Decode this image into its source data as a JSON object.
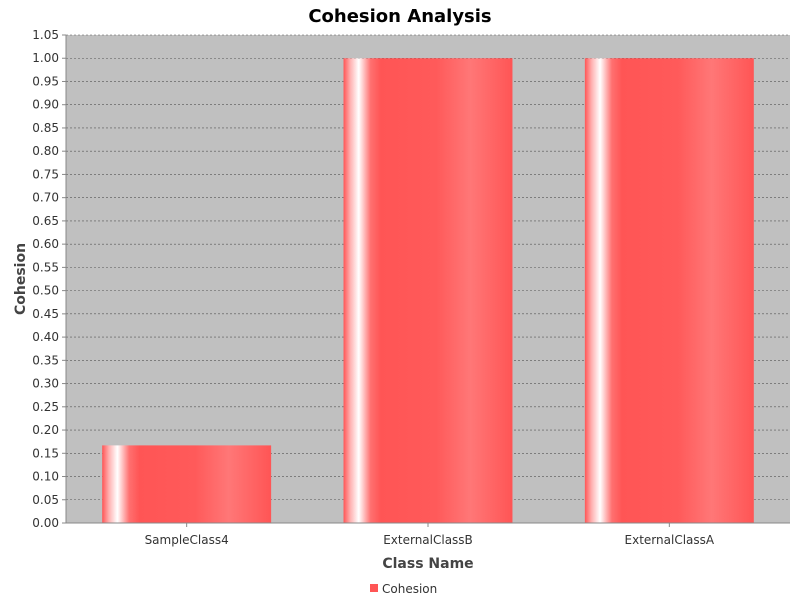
{
  "chart_data": {
    "type": "bar",
    "title": "Cohesion Analysis",
    "xlabel": "Class Name",
    "ylabel": "Cohesion",
    "categories": [
      "SampleClass4",
      "ExternalClassB",
      "ExternalClassA"
    ],
    "series": [
      {
        "name": "Cohesion",
        "values": [
          0.167,
          1.0,
          1.0
        ]
      }
    ],
    "ylim": [
      0,
      1.05
    ],
    "yticks": [
      "0.00",
      "0.05",
      "0.10",
      "0.15",
      "0.20",
      "0.25",
      "0.30",
      "0.35",
      "0.40",
      "0.45",
      "0.50",
      "0.55",
      "0.60",
      "0.65",
      "0.70",
      "0.75",
      "0.80",
      "0.85",
      "0.90",
      "0.95",
      "1.00",
      "1.05"
    ],
    "grid": true,
    "legend": "bottom-center",
    "colors": {
      "bar": "#ff5555",
      "plot_background": "#c0c0c0",
      "gridline": "#ffffff"
    }
  }
}
